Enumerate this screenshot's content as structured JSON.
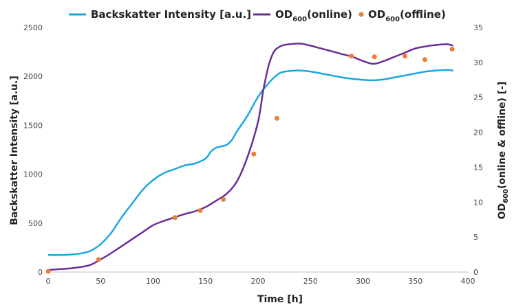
{
  "chart_data": {
    "type": "line",
    "xlabel": "Time [h]",
    "ylabel_left": "Backskatter Intensity [a.u.]",
    "ylabel_right": "OD600(online & offline) [-]",
    "xlim": [
      0,
      400
    ],
    "ylim_left": [
      0,
      2500
    ],
    "ylim_right": [
      0,
      35
    ],
    "x_ticks": [
      "0",
      "50",
      "100",
      "150",
      "200",
      "250",
      "300",
      "350",
      "400"
    ],
    "y_left_ticks": [
      "0",
      "500",
      "1000",
      "1500",
      "2000",
      "2500"
    ],
    "y_right_ticks": [
      "0",
      "5",
      "10",
      "15",
      "20",
      "25",
      "30",
      "35"
    ],
    "grid": false,
    "legend_position": "top",
    "legend": {
      "backscatter": "Backskatter Intensity [a.u.]",
      "online_base": "OD",
      "online_sub": "600",
      "online_suffix": "(online)",
      "offline_base": "OD",
      "offline_sub": "600",
      "offline_suffix": "(offline)"
    },
    "series": [
      {
        "name": "Backskatter Intensity [a.u.]",
        "axis": "left",
        "style": "line",
        "color": "#1aa7e0",
        "x": [
          0,
          10,
          20,
          30,
          40,
          50,
          60,
          70,
          80,
          90,
          100,
          110,
          120,
          130,
          140,
          150,
          155,
          160,
          165,
          170,
          175,
          180,
          190,
          200,
          210,
          220,
          230,
          240,
          250,
          260,
          270,
          280,
          290,
          300,
          310,
          320,
          330,
          340,
          350,
          360,
          370,
          380,
          386
        ],
        "y": [
          175,
          173,
          178,
          188,
          215,
          285,
          400,
          560,
          700,
          840,
          940,
          1010,
          1050,
          1090,
          1110,
          1160,
          1230,
          1270,
          1285,
          1300,
          1350,
          1440,
          1600,
          1790,
          1930,
          2030,
          2055,
          2060,
          2050,
          2030,
          2010,
          1990,
          1975,
          1965,
          1960,
          1970,
          1990,
          2010,
          2030,
          2050,
          2060,
          2065,
          2060
        ]
      },
      {
        "name": "OD600(online)",
        "axis": "right",
        "style": "line",
        "color": "#6b2d99",
        "x": [
          0,
          10,
          20,
          30,
          40,
          50,
          60,
          70,
          80,
          90,
          100,
          110,
          120,
          130,
          140,
          150,
          160,
          170,
          180,
          190,
          200,
          205,
          210,
          215,
          220,
          225,
          230,
          240,
          250,
          260,
          270,
          280,
          290,
          300,
          310,
          320,
          330,
          340,
          350,
          360,
          370,
          380,
          386
        ],
        "y": [
          0.3,
          0.4,
          0.5,
          0.7,
          1.0,
          1.8,
          2.7,
          3.7,
          4.7,
          5.7,
          6.7,
          7.3,
          7.8,
          8.3,
          8.7,
          9.3,
          10.2,
          11.2,
          13.0,
          16.5,
          21.5,
          26.0,
          29.5,
          31.5,
          32.2,
          32.5,
          32.6,
          32.7,
          32.4,
          32.0,
          31.6,
          31.2,
          30.8,
          30.2,
          29.8,
          30.2,
          30.8,
          31.4,
          32.0,
          32.3,
          32.5,
          32.6,
          32.4
        ]
      },
      {
        "name": "OD600(offline)",
        "axis": "right",
        "style": "points",
        "color": "#e8803a",
        "x": [
          0,
          48,
          121,
          145,
          167,
          196,
          218,
          289,
          311,
          340,
          359,
          385
        ],
        "y": [
          0.1,
          1.8,
          7.8,
          8.8,
          10.4,
          16.9,
          22.0,
          30.9,
          30.8,
          30.9,
          30.4,
          31.9
        ]
      }
    ]
  }
}
